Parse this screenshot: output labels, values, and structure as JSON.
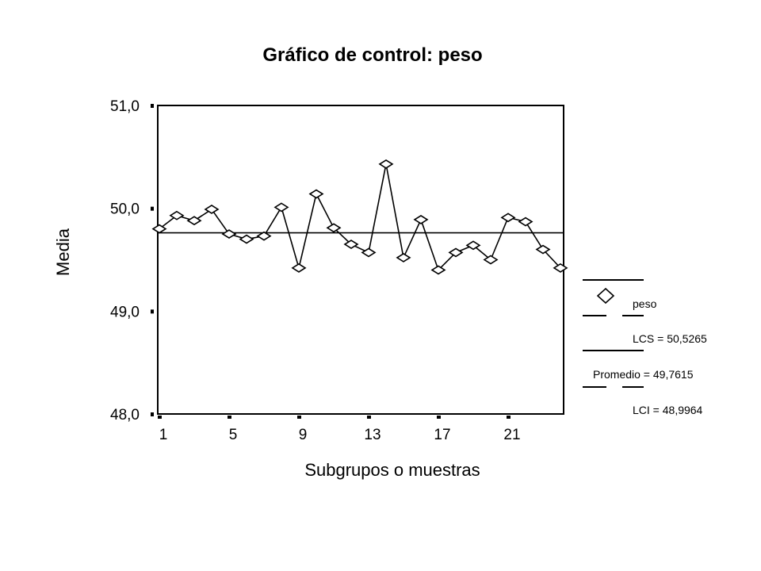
{
  "chart_data": {
    "type": "line",
    "title": "Gráfico de control: peso",
    "xlabel": "Subgrupos o muestras",
    "ylabel": "Media",
    "ylim": [
      48.0,
      51.0
    ],
    "xlim": [
      1,
      24
    ],
    "y_tick_labels": [
      "48,0",
      "49,0",
      "50,0",
      "51,0"
    ],
    "y_ticks": [
      48,
      49,
      50,
      51
    ],
    "x_tick_labels": [
      "1",
      "5",
      "9",
      "13",
      "17",
      "21"
    ],
    "x_ticks": [
      1,
      5,
      9,
      13,
      17,
      21
    ],
    "grid": false,
    "series": [
      {
        "name": "peso",
        "marker": "diamond",
        "x": [
          1,
          2,
          3,
          4,
          5,
          6,
          7,
          8,
          9,
          10,
          11,
          12,
          13,
          14,
          15,
          16,
          17,
          18,
          19,
          20,
          21,
          22,
          23,
          24
        ],
        "values": [
          49.8,
          49.93,
          49.88,
          49.99,
          49.75,
          49.7,
          49.73,
          50.01,
          49.42,
          50.14,
          49.81,
          49.65,
          49.57,
          50.43,
          49.52,
          49.89,
          49.4,
          49.57,
          49.64,
          49.5,
          49.91,
          49.87,
          49.6,
          49.42
        ]
      }
    ],
    "reference_lines": [
      {
        "name": "Promedio",
        "value": 49.7615
      }
    ],
    "legend": {
      "placement": "right",
      "entries": [
        {
          "label": "peso"
        },
        {
          "label": "LCS = 50,5265"
        },
        {
          "label": "Promedio = 49,7615"
        },
        {
          "label": "LCI = 48,9964"
        }
      ]
    },
    "colors": {
      "line": "#000000",
      "marker_fill": "#ffffff",
      "background": "#ffffff"
    }
  }
}
